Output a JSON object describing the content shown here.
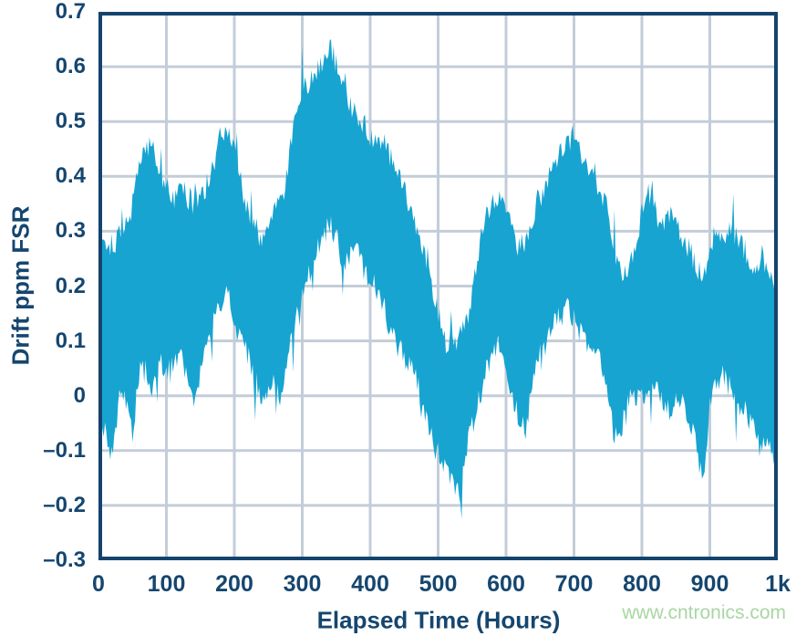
{
  "watermark": {
    "text": "www.cntronics.com",
    "color": "#A9D6A3"
  },
  "chart_data": {
    "type": "line",
    "title": "",
    "xlabel": "Elapsed Time (Hours)",
    "ylabel": "Drift ppm FSR",
    "x_range": [
      0,
      1000
    ],
    "y_range": [
      -0.3,
      0.7
    ],
    "grid": true,
    "legend": "none",
    "series_name": "Drift",
    "series_color": "#17A4D1",
    "axis_color": "#14436D",
    "grid_color": "#C3CDD8",
    "tick_label_color": "#15466F",
    "x_tick_values": [
      0,
      100,
      200,
      300,
      400,
      500,
      600,
      700,
      800,
      900,
      1000
    ],
    "x_tick_labels": [
      "0",
      "100",
      "200",
      "300",
      "400",
      "500",
      "600",
      "700",
      "800",
      "900",
      "1k"
    ],
    "y_tick_values": [
      0.7,
      0.6,
      0.5,
      0.4,
      0.3,
      0.2,
      0.1,
      0,
      -0.1,
      -0.2,
      -0.3
    ],
    "y_tick_labels": [
      "0.7",
      "0.6",
      "0.5",
      "0.4",
      "0.3",
      "0.2",
      "0.1",
      "0",
      "–0.1",
      "–0.2",
      "–0.3"
    ],
    "noise_seed": 1337,
    "noise_jitter": 0.045,
    "noise_spike_prob": 0.05,
    "noise_spike_amp": 0.07,
    "envelope": {
      "t_start": 0,
      "t_step": 10,
      "lo": [
        -0.03,
        -0.06,
        -0.1,
        0.0,
        0.0,
        -0.07,
        0.05,
        0.05,
        0.02,
        0.08,
        0.05,
        0.06,
        0.08,
        0.05,
        0.0,
        0.05,
        0.1,
        0.14,
        0.18,
        0.2,
        0.14,
        0.1,
        0.08,
        0.04,
        0.0,
        0.02,
        0.04,
        0.0,
        0.08,
        0.14,
        0.18,
        0.24,
        0.26,
        0.3,
        0.32,
        0.3,
        0.25,
        0.26,
        0.28,
        0.24,
        0.22,
        0.2,
        0.18,
        0.12,
        0.1,
        0.08,
        0.06,
        0.03,
        -0.03,
        -0.07,
        -0.1,
        -0.13,
        -0.15,
        -0.17,
        -0.1,
        -0.05,
        0.0,
        0.05,
        0.08,
        0.1,
        0.05,
        0.0,
        -0.04,
        -0.06,
        0.05,
        0.08,
        0.1,
        0.14,
        0.15,
        0.17,
        0.15,
        0.12,
        0.1,
        0.1,
        0.06,
        0.0,
        -0.07,
        -0.05,
        0.0,
        0.0,
        0.02,
        0.0,
        0.02,
        0.0,
        -0.02,
        0.0,
        0.0,
        -0.04,
        -0.08,
        -0.16,
        0.0,
        0.04,
        0.04,
        0.02,
        0.0,
        -0.02,
        -0.04,
        -0.08,
        -0.09,
        -0.08,
        -0.12
      ],
      "hi": [
        0.25,
        0.26,
        0.27,
        0.28,
        0.3,
        0.34,
        0.42,
        0.44,
        0.455,
        0.4,
        0.37,
        0.35,
        0.37,
        0.36,
        0.34,
        0.35,
        0.38,
        0.42,
        0.46,
        0.475,
        0.45,
        0.38,
        0.33,
        0.3,
        0.28,
        0.31,
        0.33,
        0.35,
        0.42,
        0.5,
        0.55,
        0.56,
        0.58,
        0.61,
        0.635,
        0.6,
        0.56,
        0.52,
        0.5,
        0.49,
        0.47,
        0.46,
        0.46,
        0.43,
        0.4,
        0.37,
        0.33,
        0.28,
        0.26,
        0.2,
        0.14,
        0.09,
        0.08,
        0.1,
        0.12,
        0.18,
        0.25,
        0.32,
        0.35,
        0.36,
        0.33,
        0.29,
        0.26,
        0.28,
        0.32,
        0.35,
        0.38,
        0.42,
        0.44,
        0.46,
        0.46,
        0.43,
        0.41,
        0.39,
        0.36,
        0.33,
        0.26,
        0.21,
        0.22,
        0.26,
        0.33,
        0.36,
        0.33,
        0.3,
        0.33,
        0.3,
        0.28,
        0.26,
        0.23,
        0.21,
        0.26,
        0.3,
        0.29,
        0.3,
        0.28,
        0.26,
        0.24,
        0.22,
        0.24,
        0.21,
        0.16
      ]
    }
  }
}
